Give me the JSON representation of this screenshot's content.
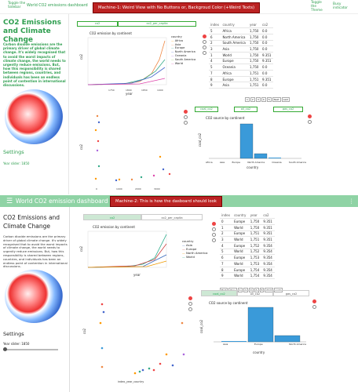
{
  "machine1": {
    "toggle_sidebar": "Toggle the Sidebar",
    "app_title": "World CO2 emissions dashboard",
    "banner": "Machine-1: Weird View with No Buttons or, Backgroud Color (+Weird Texts)",
    "toggle_theme": "Toggle the Theme",
    "busy_indicator": "Busy indicator",
    "sidebar_title": "CO2 Emissions and Climate Change",
    "sidebar_text": "Carbon dioxide emissions are the primary driver of global climate change. It's widely recognised that to avoid the worst impacts of climate change, the world needs to urgently reduce emissions. But, how this responsibility is shared between regions, countries, and individuals has been an endless point of contention in international discussions.",
    "settings": "Settings",
    "year_slider": "Year slider: 1850",
    "tabs": [
      "co2",
      "co2_per_capita"
    ],
    "line_title": "CO2 emission by continent",
    "line_xlabel": "year",
    "line_ylabel": "co2",
    "legend_title": "country",
    "legend": [
      "Africa",
      "Asia",
      "Europe",
      "North America",
      "Oceania",
      "South America",
      "World"
    ],
    "table_headers": [
      "index",
      "country",
      "year",
      "co2"
    ],
    "table_rows": [
      [
        "5",
        "Africa",
        "1,750",
        "0.0"
      ],
      [
        "6",
        "North America",
        "1,750",
        "0.0"
      ],
      [
        "2",
        "South America",
        "1,750",
        "0.0"
      ],
      [
        "3",
        "Asia",
        "1,750",
        "0.0"
      ],
      [
        "1",
        "World",
        "1,750",
        "9.351"
      ],
      [
        "4",
        "Europe",
        "1,750",
        "9.351"
      ],
      [
        "5",
        "Oceania",
        "1,750",
        "0.0"
      ],
      [
        "7",
        "Africa",
        "1,751",
        "0.0"
      ],
      [
        "8",
        "Europe",
        "1,751",
        "9.351"
      ],
      [
        "9",
        "Asia",
        "1,751",
        "0.0"
      ]
    ],
    "pager": [
      "1",
      "2",
      "3",
      "4",
      "5",
      "Next",
      "Last"
    ],
    "scatter_ylabel": "co2",
    "bar_tabs": [
      "coal_co2",
      "oil_co2",
      "gas_co2"
    ],
    "bar_title": "CO2 source by continent",
    "bar_categories": [
      "Africa",
      "Asia",
      "Europe",
      "North America",
      "Oceania",
      "South America"
    ],
    "bar_xlabel": "country",
    "bar_ylabel": "coal_co2"
  },
  "machine2": {
    "banner": "Machine-2: This is how the dasboard should look",
    "app_title": "World CO2 emission dashboard",
    "sidebar_title": "CO2 Emissions and Climate Change",
    "sidebar_text": "Carbon dioxide emissions are the primary driver of global climate change. It's widely recognised that to avoid the worst impacts of climate change, the world needs to urgently reduce emissions. But, how this responsibility is shared between regions, countries, and individuals has been an endless point of contention in international discussions.",
    "settings": "Settings",
    "year_slider": "Year slider: 1850",
    "tabs": [
      "co2",
      "co2_per_capita"
    ],
    "line_title": "CO2 emission by continent",
    "line_xlabel": "year",
    "line_ylabel": "co2",
    "legend_title": "country",
    "legend": [
      "Asia",
      "Europe",
      "North America",
      "World"
    ],
    "table_headers": [
      "index",
      "country",
      "year",
      "co2"
    ],
    "table_rows": [
      [
        "0",
        "Europe",
        "1,750",
        "9.351"
      ],
      [
        "1",
        "World",
        "1,750",
        "9.351"
      ],
      [
        "2",
        "Europe",
        "1,751",
        "9.351"
      ],
      [
        "3",
        "World",
        "1,751",
        "9.351"
      ],
      [
        "4",
        "Europe",
        "1,752",
        "9.354"
      ],
      [
        "5",
        "World",
        "1,752",
        "9.354"
      ],
      [
        "6",
        "Europe",
        "1,753",
        "9.354"
      ],
      [
        "7",
        "World",
        "1,753",
        "9.354"
      ],
      [
        "8",
        "Europe",
        "1,754",
        "9.354"
      ],
      [
        "9",
        "World",
        "1,754",
        "9.354"
      ]
    ],
    "pager_first": "First",
    "pager_prev": "Prev",
    "pager": [
      "1",
      "2",
      "3",
      "4",
      "5",
      "Next",
      "Last"
    ],
    "scatter_ylabel": "co2",
    "scatter_xlabel": "index_year_country",
    "bar_tabs": [
      "coal_co2",
      "oil_co2",
      "gas_co2"
    ],
    "bar_title": "CO2 source by continent",
    "bar_categories": [
      "Asia",
      "Europe",
      "North America"
    ],
    "bar_xlabel": "country",
    "bar_ylabel": "coal_co2"
  },
  "colors": {
    "accent": "#2e9e4f",
    "bar": "#3a9ad9",
    "banner": "#b22222"
  }
}
